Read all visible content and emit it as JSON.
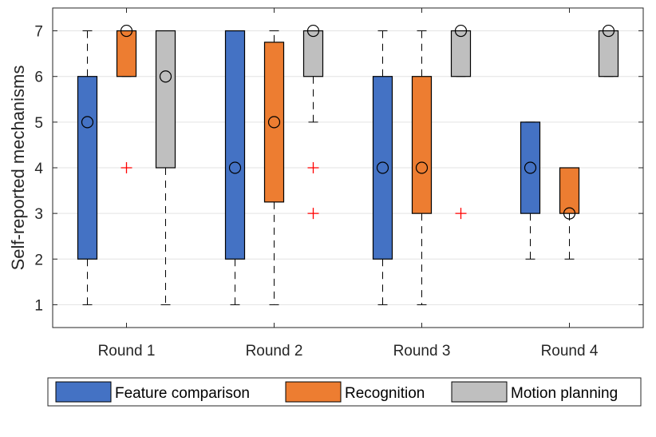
{
  "chart_data": {
    "type": "boxplot",
    "ylabel": "Self-reported mechanisms",
    "xlabel": "",
    "ylim": [
      0.5,
      7.5
    ],
    "yticks": [
      "1",
      "2",
      "3",
      "4",
      "5",
      "6",
      "7"
    ],
    "grid": true,
    "legend_position": "bottom",
    "categories": [
      "Round 1",
      "Round 2",
      "Round 3",
      "Round 4"
    ],
    "series": [
      {
        "name": "Feature comparison",
        "color": "#4472C4",
        "boxes": [
          {
            "q1": 2,
            "median": 5,
            "q3": 6,
            "whisker_low": 1,
            "whisker_high": 7,
            "outliers": []
          },
          {
            "q1": 2,
            "median": 4,
            "q3": 7,
            "whisker_low": 1,
            "whisker_high": 7,
            "outliers": []
          },
          {
            "q1": 2,
            "median": 4,
            "q3": 6,
            "whisker_low": 1,
            "whisker_high": 7,
            "outliers": []
          },
          {
            "q1": 3,
            "median": 4,
            "q3": 5,
            "whisker_low": 2,
            "whisker_high": 5,
            "outliers": []
          }
        ]
      },
      {
        "name": "Recognition",
        "color": "#ED7D31",
        "boxes": [
          {
            "q1": 6,
            "median": 7,
            "q3": 7,
            "whisker_low": 6,
            "whisker_high": 7,
            "outliers": [
              4
            ]
          },
          {
            "q1": 3.25,
            "median": 5,
            "q3": 6.75,
            "whisker_low": 1,
            "whisker_high": 7,
            "outliers": []
          },
          {
            "q1": 3,
            "median": 4,
            "q3": 6,
            "whisker_low": 1,
            "whisker_high": 7,
            "outliers": []
          },
          {
            "q1": 3,
            "median": 3,
            "q3": 4,
            "whisker_low": 2,
            "whisker_high": 4,
            "outliers": []
          }
        ]
      },
      {
        "name": "Motion planning",
        "color": "#BFBFBF",
        "boxes": [
          {
            "q1": 4,
            "median": 6,
            "q3": 7,
            "whisker_low": 1,
            "whisker_high": 7,
            "outliers": []
          },
          {
            "q1": 6,
            "median": 7,
            "q3": 7,
            "whisker_low": 5,
            "whisker_high": 7,
            "outliers": [
              4,
              3
            ]
          },
          {
            "q1": 6,
            "median": 7,
            "q3": 7,
            "whisker_low": 6,
            "whisker_high": 7,
            "outliers": [
              3
            ]
          },
          {
            "q1": 6,
            "median": 7,
            "q3": 7,
            "whisker_low": 6,
            "whisker_high": 7,
            "outliers": []
          }
        ]
      }
    ]
  }
}
